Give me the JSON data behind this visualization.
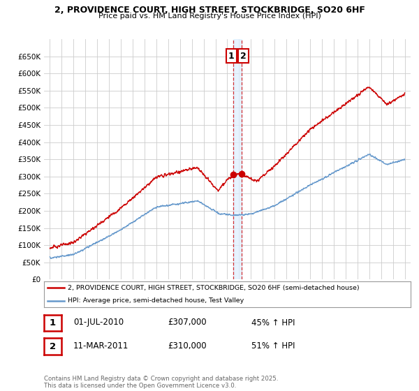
{
  "title": "2, PROVIDENCE COURT, HIGH STREET, STOCKBRIDGE, SO20 6HF",
  "subtitle": "Price paid vs. HM Land Registry's House Price Index (HPI)",
  "legend_line1": "2, PROVIDENCE COURT, HIGH STREET, STOCKBRIDGE, SO20 6HF (semi-detached house)",
  "legend_line2": "HPI: Average price, semi-detached house, Test Valley",
  "footnote": "Contains HM Land Registry data © Crown copyright and database right 2025.\nThis data is licensed under the Open Government Licence v3.0.",
  "transaction1_label": "1",
  "transaction1_date": "01-JUL-2010",
  "transaction1_price": "£307,000",
  "transaction1_hpi": "45% ↑ HPI",
  "transaction2_label": "2",
  "transaction2_date": "11-MAR-2011",
  "transaction2_price": "£310,000",
  "transaction2_hpi": "51% ↑ HPI",
  "red_color": "#cc0000",
  "blue_color": "#6699cc",
  "blue_shade_color": "#ddeeff",
  "grid_color": "#cccccc",
  "bg_color": "#ffffff",
  "ylim": [
    0,
    700000
  ],
  "yticks": [
    0,
    50000,
    100000,
    150000,
    200000,
    250000,
    300000,
    350000,
    400000,
    450000,
    500000,
    550000,
    600000,
    650000
  ],
  "marker1_x": 2010.5,
  "marker1_y": 305000,
  "marker2_x": 2011.2,
  "marker2_y": 308000,
  "xmin": 1994.5,
  "xmax": 2025.5
}
